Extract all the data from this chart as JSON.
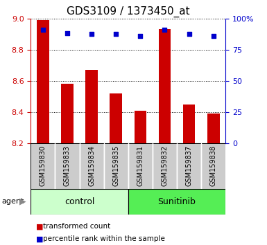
{
  "title": "GDS3109 / 1373450_at",
  "samples": [
    "GSM159830",
    "GSM159833",
    "GSM159834",
    "GSM159835",
    "GSM159831",
    "GSM159832",
    "GSM159837",
    "GSM159838"
  ],
  "bar_values": [
    8.99,
    8.58,
    8.67,
    8.52,
    8.41,
    8.93,
    8.45,
    8.39
  ],
  "percentile_values": [
    91,
    88,
    87.5,
    87.5,
    86,
    91,
    87.5,
    86
  ],
  "ylim_left": [
    8.2,
    9.0
  ],
  "ylim_right": [
    0,
    100
  ],
  "yticks_left": [
    8.2,
    8.4,
    8.6,
    8.8,
    9.0
  ],
  "yticks_right": [
    0,
    25,
    50,
    75,
    100
  ],
  "bar_color": "#cc0000",
  "dot_color": "#0000cc",
  "groups": [
    {
      "label": "control",
      "indices": [
        0,
        1,
        2,
        3
      ],
      "color": "#ccffcc"
    },
    {
      "label": "Sunitinib",
      "indices": [
        4,
        5,
        6,
        7
      ],
      "color": "#55ee55"
    }
  ],
  "tick_color_left": "#cc0000",
  "tick_color_right": "#0000cc",
  "legend_items": [
    {
      "label": "transformed count",
      "color": "#cc0000"
    },
    {
      "label": "percentile rank within the sample",
      "color": "#0000cc"
    }
  ],
  "bar_width": 0.5,
  "sample_area_color": "#cccccc",
  "title_fontsize": 11,
  "tick_fontsize": 8,
  "sample_fontsize": 7,
  "group_fontsize": 9
}
